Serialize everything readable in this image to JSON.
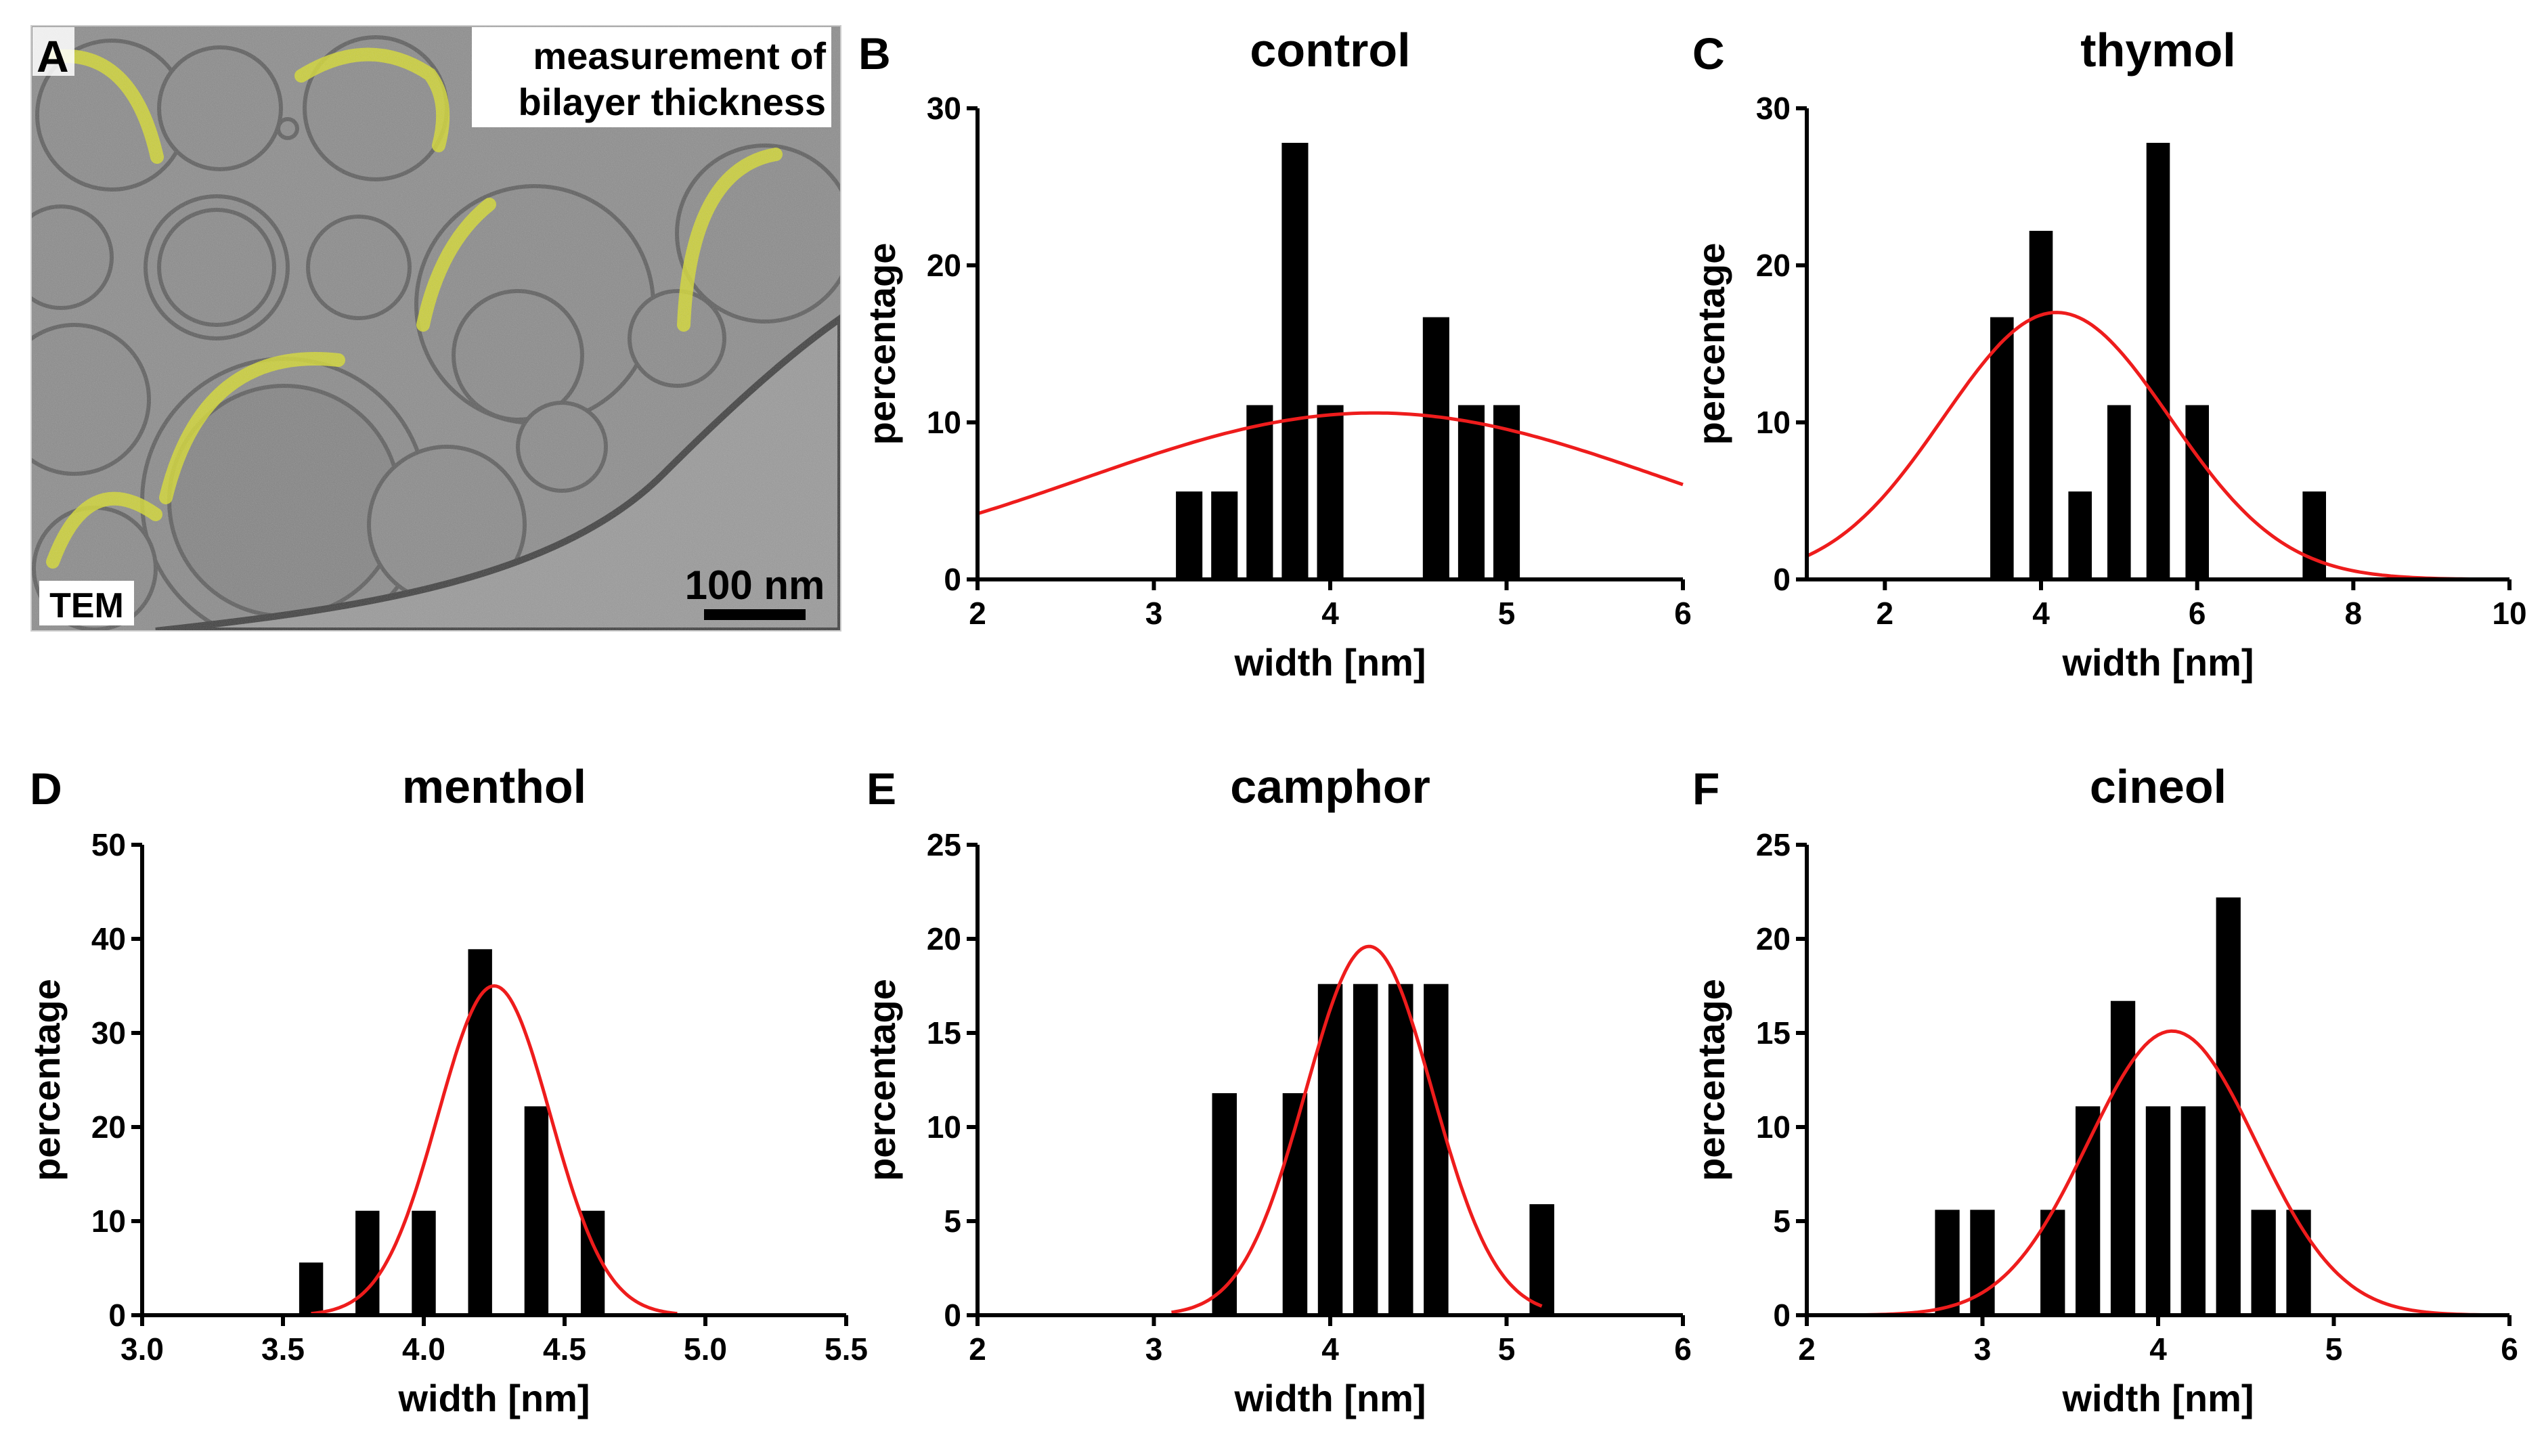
{
  "colors": {
    "bar": "#000000",
    "fit": "#ee1c1c",
    "highlight": "#d7dc2a",
    "em_background": "#8c8c8c"
  },
  "panel_a": {
    "letter": "A",
    "annotation_line1": "measurement of",
    "annotation_line2": "bilayer thickness",
    "method_label": "TEM",
    "scale_bar_label": "100 nm"
  },
  "chart_data": [
    {
      "panel": "B",
      "type": "bar",
      "title": "control",
      "xlabel": "width [nm]",
      "ylabel": "percentage",
      "xlim": [
        2,
        6
      ],
      "ylim": [
        0,
        30
      ],
      "xticks": [
        2,
        3,
        4,
        5,
        6
      ],
      "yticks": [
        0,
        10,
        20,
        30
      ],
      "tick_decimals": 0,
      "bar_width": 0.15,
      "x": [
        3.2,
        3.4,
        3.6,
        3.8,
        4.0,
        4.6,
        4.8,
        5.0
      ],
      "values": [
        5.6,
        5.6,
        11.1,
        27.8,
        11.1,
        16.7,
        11.1,
        11.1
      ],
      "fit": {
        "type": "gaussian",
        "amplitude": 10.6,
        "mean": 4.25,
        "sd": 1.65,
        "range": [
          2,
          6
        ]
      }
    },
    {
      "panel": "C",
      "type": "bar",
      "title": "thymol",
      "xlabel": "width [nm]",
      "ylabel": "percentage",
      "xlim": [
        1,
        10
      ],
      "ylim": [
        0,
        30
      ],
      "xticks": [
        2,
        4,
        6,
        8,
        10
      ],
      "yticks": [
        0,
        10,
        20,
        30
      ],
      "tick_decimals": 0,
      "bar_width": 0.3,
      "x": [
        3.5,
        4.0,
        4.5,
        5.0,
        5.5,
        6.0,
        7.5
      ],
      "values": [
        16.7,
        22.2,
        5.6,
        11.1,
        27.8,
        11.1,
        5.6
      ],
      "fit": {
        "type": "gaussian",
        "amplitude": 17.0,
        "mean": 4.2,
        "sd": 1.45,
        "range": [
          1,
          10
        ]
      }
    },
    {
      "panel": "D",
      "type": "bar",
      "title": "menthol",
      "xlabel": "width [nm]",
      "ylabel": "percentage",
      "xlim": [
        3.0,
        5.5
      ],
      "ylim": [
        0,
        50
      ],
      "xticks": [
        3.0,
        3.5,
        4.0,
        4.5,
        5.0,
        5.5
      ],
      "yticks": [
        0,
        10,
        20,
        30,
        40,
        50
      ],
      "tick_decimals": 1,
      "bar_width": 0.085,
      "x": [
        3.6,
        3.8,
        4.0,
        4.2,
        4.4,
        4.6
      ],
      "values": [
        5.6,
        11.1,
        11.1,
        38.9,
        22.2,
        11.1
      ],
      "fit": {
        "type": "gaussian",
        "amplitude": 35.0,
        "mean": 4.25,
        "sd": 0.2,
        "range": [
          3.6,
          4.9
        ]
      }
    },
    {
      "panel": "E",
      "type": "bar",
      "title": "camphor",
      "xlabel": "width [nm]",
      "ylabel": "percentage",
      "xlim": [
        2,
        6
      ],
      "ylim": [
        0,
        25
      ],
      "xticks": [
        2,
        3,
        4,
        5,
        6
      ],
      "yticks": [
        0,
        5,
        10,
        15,
        20,
        25
      ],
      "tick_decimals": 0,
      "bar_width": 0.14,
      "x": [
        3.4,
        3.8,
        4.0,
        4.2,
        4.4,
        4.6,
        5.2
      ],
      "values": [
        11.8,
        11.8,
        17.6,
        17.6,
        17.6,
        17.6,
        5.9
      ],
      "fit": {
        "type": "gaussian",
        "amplitude": 19.6,
        "mean": 4.22,
        "sd": 0.36,
        "range": [
          3.1,
          5.2
        ]
      }
    },
    {
      "panel": "F",
      "type": "bar",
      "title": "cineol",
      "xlabel": "width [nm]",
      "ylabel": "percentage",
      "xlim": [
        2,
        6
      ],
      "ylim": [
        0,
        25
      ],
      "xticks": [
        2,
        3,
        4,
        5,
        6
      ],
      "yticks": [
        0,
        5,
        10,
        15,
        20,
        25
      ],
      "tick_decimals": 0,
      "bar_width": 0.14,
      "x": [
        2.8,
        3.0,
        3.4,
        3.6,
        3.8,
        4.0,
        4.2,
        4.4,
        4.6,
        4.8
      ],
      "values": [
        5.6,
        5.6,
        5.6,
        11.1,
        16.7,
        11.1,
        11.1,
        22.2,
        5.6,
        5.6
      ],
      "fit": {
        "type": "gaussian",
        "amplitude": 15.1,
        "mean": 4.08,
        "sd": 0.48,
        "range": [
          2,
          6
        ]
      }
    }
  ]
}
